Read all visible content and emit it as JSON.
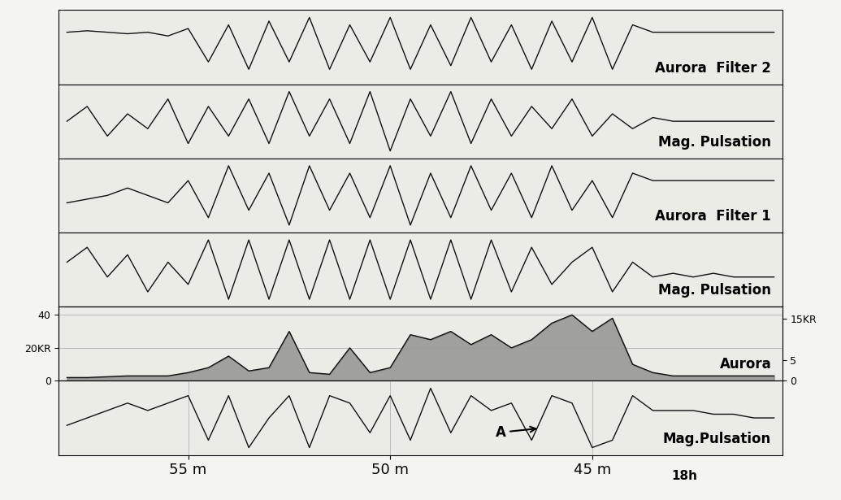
{
  "chart_data": [
    {
      "type": "line",
      "title": "Aurora",
      "subtitle": "Filter 2",
      "xlim": [
        58.2,
        40.3
      ],
      "ylim": [
        0,
        10
      ],
      "tick_labels": false,
      "grid": true,
      "color": "#111111",
      "x": [
        58,
        57.5,
        57,
        56.5,
        56,
        55.5,
        55,
        54.5,
        54,
        53.5,
        53,
        52.5,
        52,
        51.5,
        51,
        50.5,
        50,
        49.5,
        49,
        48.5,
        48,
        47.5,
        47,
        46.5,
        46,
        45.5,
        45,
        44.5,
        44,
        43.5,
        43,
        42.5,
        42,
        41.5,
        41,
        40.5
      ],
      "values": [
        7,
        7.2,
        7,
        6.8,
        7,
        6.5,
        7.5,
        3,
        8,
        2,
        8.5,
        3,
        9,
        2,
        8,
        3,
        9,
        2,
        8,
        2.5,
        9,
        3,
        8,
        2,
        8.5,
        3,
        9,
        2,
        8,
        7,
        7,
        7,
        7,
        7,
        7,
        7
      ]
    },
    {
      "type": "line",
      "title": "Mag. Pulsation",
      "xlim": [
        58.2,
        40.3
      ],
      "ylim": [
        0,
        10
      ],
      "tick_labels": false,
      "grid": true,
      "color": "#111111",
      "x": [
        58,
        57.5,
        57,
        56.5,
        56,
        55.5,
        55,
        54.5,
        54,
        53.5,
        53,
        52.5,
        52,
        51.5,
        51,
        50.5,
        50,
        49.5,
        49,
        48.5,
        48,
        47.5,
        47,
        46.5,
        46,
        45.5,
        45,
        44.5,
        44,
        43.5,
        43,
        42.5,
        42,
        41.5,
        41,
        40.5
      ],
      "values": [
        5,
        7,
        3,
        6,
        4,
        8,
        2,
        7,
        3,
        8,
        2,
        9,
        3,
        8,
        2,
        9,
        1,
        8,
        3,
        9,
        2,
        8,
        3,
        7,
        4,
        8,
        3,
        6,
        4,
        5.5,
        5,
        5,
        5,
        5,
        5,
        5
      ]
    },
    {
      "type": "line",
      "title": "Aurora",
      "subtitle": "Filter 1",
      "xlim": [
        58.2,
        40.3
      ],
      "ylim": [
        0,
        10
      ],
      "tick_labels": false,
      "grid": true,
      "color": "#111111",
      "x": [
        58,
        57.5,
        57,
        56.5,
        56,
        55.5,
        55,
        54.5,
        54,
        53.5,
        53,
        52.5,
        52,
        51.5,
        51,
        50.5,
        50,
        49.5,
        49,
        48.5,
        48,
        47.5,
        47,
        46.5,
        46,
        45.5,
        45,
        44.5,
        44,
        43.5,
        43,
        42.5,
        42,
        41.5,
        41,
        40.5
      ],
      "values": [
        4,
        4.5,
        5,
        6,
        5,
        4,
        7,
        2,
        9,
        3,
        8,
        1,
        9,
        3,
        8,
        2,
        9,
        1,
        8,
        2,
        9,
        3,
        8,
        2,
        9,
        3,
        7,
        2,
        8,
        7,
        7,
        7,
        7,
        7,
        7,
        7
      ]
    },
    {
      "type": "line",
      "title": "Mag. Pulsation",
      "xlim": [
        58.2,
        40.3
      ],
      "ylim": [
        0,
        10
      ],
      "tick_labels": false,
      "grid": true,
      "color": "#111111",
      "x": [
        58,
        57.5,
        57,
        56.5,
        56,
        55.5,
        55,
        54.5,
        54,
        53.5,
        53,
        52.5,
        52,
        51.5,
        51,
        50.5,
        50,
        49.5,
        49,
        48.5,
        48,
        47.5,
        47,
        46.5,
        46,
        45.5,
        45,
        44.5,
        44,
        43.5,
        43,
        42.5,
        42,
        41.5,
        41,
        40.5
      ],
      "values": [
        6,
        8,
        4,
        7,
        2,
        6,
        3,
        9,
        1,
        9,
        1,
        9,
        1,
        9,
        1,
        9,
        1,
        9,
        1,
        9,
        1,
        9,
        2,
        8,
        3,
        6,
        8,
        2,
        6,
        4,
        4.5,
        4,
        4.5,
        4,
        4,
        4
      ]
    },
    {
      "type": "line",
      "title": "Aurora",
      "xlim": [
        58.2,
        40.3
      ],
      "ylim": [
        0,
        45
      ],
      "yticks": [
        0,
        {
          "value": 20,
          "label": "20KR"
        },
        40
      ],
      "y2lim": [
        0,
        18
      ],
      "y2ticks": [
        0,
        5,
        {
          "value": 15,
          "label": "15KR"
        }
      ],
      "tick_labels": "y",
      "grid": true,
      "color": "#111111",
      "x": [
        58,
        57.5,
        57,
        56.5,
        56,
        55.5,
        55,
        54.5,
        54,
        53.5,
        53,
        52.5,
        52,
        51.5,
        51,
        50.5,
        50,
        49.5,
        49,
        48.5,
        48,
        47.5,
        47,
        46.5,
        46,
        45.5,
        45,
        44.5,
        44,
        43.5,
        43,
        42.5,
        42,
        41.5,
        41,
        40.5
      ],
      "values": [
        2,
        2,
        2.5,
        3,
        3,
        3,
        5,
        8,
        15,
        6,
        8,
        30,
        5,
        4,
        20,
        5,
        8,
        28,
        25,
        30,
        22,
        28,
        20,
        25,
        35,
        40,
        30,
        38,
        10,
        5,
        3,
        3,
        3,
        3,
        3,
        3
      ]
    },
    {
      "type": "line",
      "title": "Mag.Pulsation",
      "xlim": [
        58.2,
        40.3
      ],
      "ylim": [
        0,
        10
      ],
      "tick_labels": "x",
      "grid": true,
      "color": "#111111",
      "xticks": [
        {
          "value": 55,
          "label": "55 m"
        },
        {
          "value": 50,
          "label": "50 m"
        },
        {
          "value": 45,
          "label": "45 m"
        }
      ],
      "time_label": "18h",
      "annotation": {
        "text": "A",
        "x": 47.4,
        "y": 2.5,
        "x_arrow": 46.3,
        "y_arrow": 3.6
      },
      "x": [
        58,
        57.5,
        57,
        56.5,
        56,
        55.5,
        55,
        54.5,
        54,
        53.5,
        53,
        52.5,
        52,
        51.5,
        51,
        50.5,
        50,
        49.5,
        49,
        48.5,
        48,
        47.5,
        47,
        46.5,
        46,
        45.5,
        45,
        44.5,
        44,
        43.5,
        43,
        42.5,
        42,
        41.5,
        41,
        40.5
      ],
      "values": [
        4,
        5,
        6,
        7,
        6,
        7,
        8,
        2,
        8,
        1,
        5,
        8,
        1,
        8,
        7,
        3,
        8,
        2,
        9,
        3,
        8,
        6,
        7,
        2,
        8,
        7,
        1,
        2,
        8,
        6,
        6,
        6,
        5.5,
        5.5,
        5,
        5
      ]
    }
  ]
}
